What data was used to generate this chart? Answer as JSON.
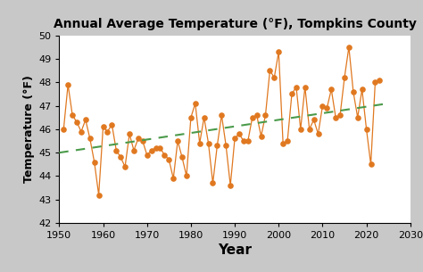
{
  "title": "Annual Average Temperature (°F), Tompkins County",
  "xlabel": "Year",
  "ylabel": "Temperature (°F)",
  "xlim": [
    1950,
    2030
  ],
  "ylim": [
    42,
    50
  ],
  "yticks": [
    42,
    43,
    44,
    45,
    46,
    47,
    48,
    49,
    50
  ],
  "xticks": [
    1950,
    1960,
    1970,
    1980,
    1990,
    2000,
    2010,
    2020,
    2030
  ],
  "bg_color": "#c8c8c8",
  "plot_bg_color": "#ffffff",
  "line_color": "#e07820",
  "dot_color": "#e07820",
  "trend_color": "#4a9a4a",
  "years": [
    1951,
    1952,
    1953,
    1954,
    1955,
    1956,
    1957,
    1958,
    1959,
    1960,
    1961,
    1962,
    1963,
    1964,
    1965,
    1966,
    1967,
    1968,
    1969,
    1970,
    1971,
    1972,
    1973,
    1974,
    1975,
    1976,
    1977,
    1978,
    1979,
    1980,
    1981,
    1982,
    1983,
    1984,
    1985,
    1986,
    1987,
    1988,
    1989,
    1990,
    1991,
    1992,
    1993,
    1994,
    1995,
    1996,
    1997,
    1998,
    1999,
    2000,
    2001,
    2002,
    2003,
    2004,
    2005,
    2006,
    2007,
    2008,
    2009,
    2010,
    2011,
    2012,
    2013,
    2014,
    2015,
    2016,
    2017,
    2018,
    2019,
    2020,
    2021,
    2022,
    2023
  ],
  "temps": [
    46.0,
    47.9,
    46.6,
    46.3,
    45.9,
    46.4,
    45.6,
    44.6,
    43.2,
    46.1,
    45.9,
    46.2,
    45.1,
    44.8,
    44.4,
    45.8,
    45.1,
    45.6,
    45.5,
    44.9,
    45.1,
    45.2,
    45.2,
    44.9,
    44.7,
    43.9,
    45.5,
    44.8,
    44.0,
    46.5,
    47.1,
    45.4,
    46.5,
    45.4,
    43.7,
    45.3,
    46.6,
    45.3,
    43.6,
    45.6,
    45.8,
    45.5,
    45.5,
    46.5,
    46.6,
    45.7,
    46.6,
    48.5,
    48.2,
    49.3,
    45.4,
    45.5,
    47.5,
    47.8,
    46.0,
    47.8,
    46.0,
    46.4,
    45.8,
    47.0,
    46.9,
    47.7,
    46.5,
    46.6,
    48.2,
    49.5,
    47.6,
    46.5,
    47.7,
    46.0,
    44.5,
    48.0,
    48.1
  ],
  "trend_x": [
    1950,
    2025
  ],
  "trend_y": [
    45.0,
    47.1
  ],
  "title_fontsize": 10,
  "xlabel_fontsize": 11,
  "ylabel_fontsize": 9,
  "tick_labelsize": 8
}
